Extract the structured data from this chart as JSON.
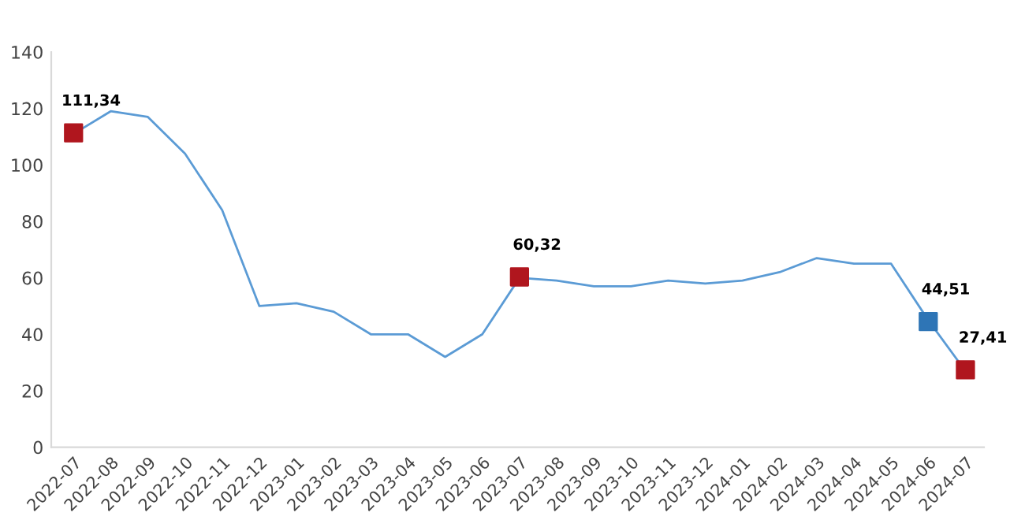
{
  "chart_data": {
    "type": "line",
    "categories": [
      "2022-07",
      "2022-08",
      "2022-09",
      "2022-10",
      "2022-11",
      "2022-12",
      "2023-01",
      "2023-02",
      "2023-03",
      "2023-04",
      "2023-05",
      "2023-06",
      "2023-07",
      "2023-08",
      "2023-09",
      "2023-10",
      "2023-11",
      "2023-12",
      "2024-01",
      "2024-02",
      "2024-03",
      "2024-04",
      "2024-05",
      "2024-06",
      "2024-07"
    ],
    "series": [
      {
        "color": "#5b9bd5",
        "values": [
          111,
          119,
          117,
          104,
          84,
          50,
          51,
          48,
          40,
          40,
          32,
          40,
          60,
          59,
          57,
          57,
          59,
          58,
          59,
          62,
          67,
          65,
          65,
          45,
          27
        ]
      },
      {
        "type": "scatter",
        "marker": "square",
        "values": [
          111.34,
          null,
          null,
          null,
          null,
          null,
          null,
          null,
          null,
          null,
          null,
          null,
          60.32,
          null,
          null,
          null,
          null,
          null,
          null,
          null,
          null,
          null,
          null,
          44.51,
          27.41
        ],
        "colors": [
          "#b0161e",
          null,
          null,
          null,
          null,
          null,
          null,
          null,
          null,
          null,
          null,
          null,
          "#b0161e",
          null,
          null,
          null,
          null,
          null,
          null,
          null,
          null,
          null,
          null,
          "#2e75b6",
          "#b0161e"
        ],
        "value_labels": [
          "111,34",
          null,
          null,
          null,
          null,
          null,
          null,
          null,
          null,
          null,
          null,
          null,
          "60,32",
          null,
          null,
          null,
          null,
          null,
          null,
          null,
          null,
          null,
          null,
          "44,51",
          "27,41"
        ]
      }
    ],
    "ylim": [
      0,
      140
    ],
    "yticks": [
      0,
      20,
      40,
      60,
      80,
      100,
      120,
      140
    ],
    "grid": false,
    "legend": false
  }
}
